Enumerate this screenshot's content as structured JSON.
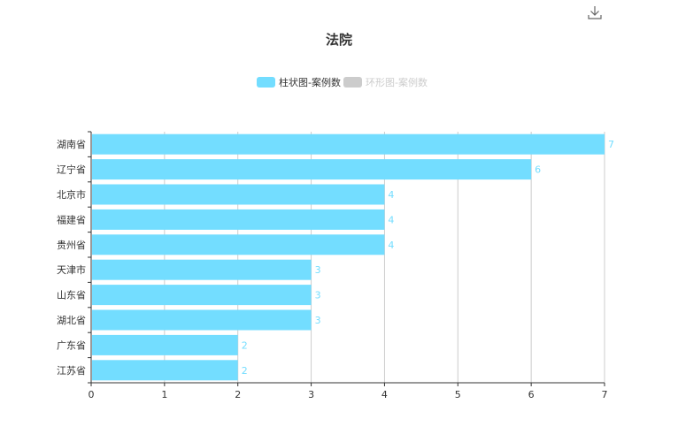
{
  "toolbar": {
    "download_icon": "download-icon"
  },
  "chart_data": {
    "type": "bar",
    "orientation": "horizontal",
    "title": "法院",
    "legend": [
      {
        "name": "柱状图-案例数",
        "color": "#73ddff",
        "active": true
      },
      {
        "name": "环形图-案例数",
        "color": "#cccccc",
        "active": false
      }
    ],
    "legend_position": "top-center",
    "categories": [
      "湖南省",
      "辽宁省",
      "北京市",
      "福建省",
      "贵州省",
      "天津市",
      "山东省",
      "湖北省",
      "广东省",
      "江苏省"
    ],
    "series": [
      {
        "name": "柱状图-案例数",
        "values": [
          7,
          6,
          4,
          4,
          4,
          3,
          3,
          3,
          2,
          2
        ]
      }
    ],
    "xlim": [
      0,
      7
    ],
    "x_ticks": [
      "0",
      "1",
      "2",
      "3",
      "4",
      "5",
      "6",
      "7"
    ],
    "grid": true,
    "bar_color": "#73ddff",
    "axis_color": "#333333",
    "grid_color": "#cccccc"
  }
}
